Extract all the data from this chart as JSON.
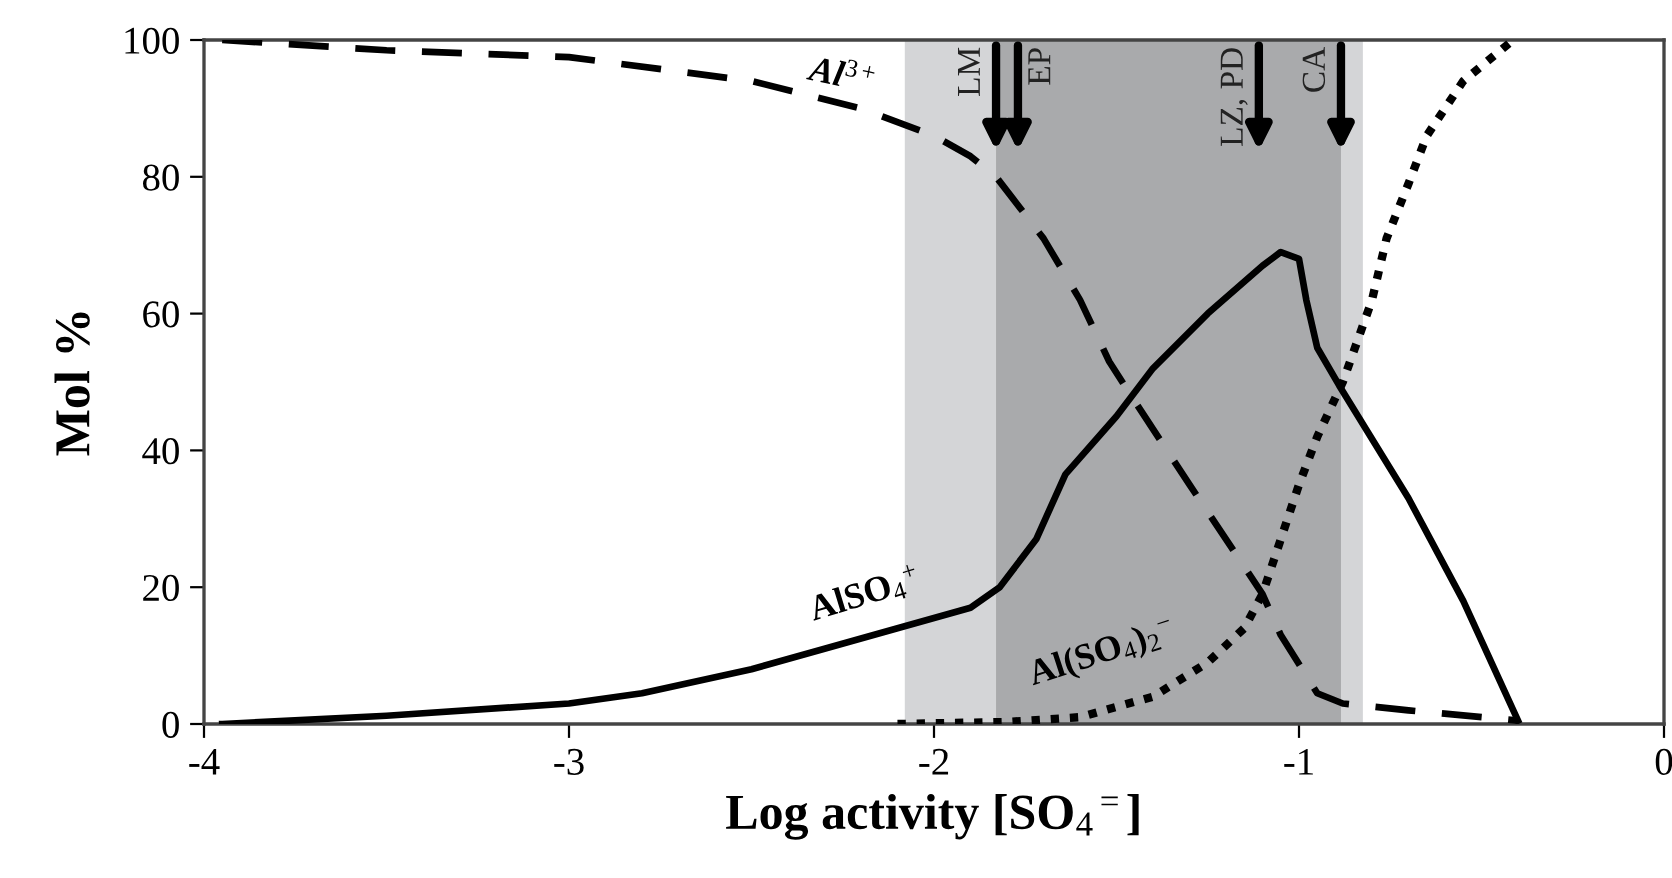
{
  "chart_data": {
    "type": "line",
    "xlabel": "Log activity [SO$_{4}$$^{=}$]",
    "ylabel": "Mol %",
    "xlim": [
      -4,
      0
    ],
    "xticks": [
      -4,
      -3,
      -2,
      -1,
      0
    ],
    "ylim": [
      0,
      100
    ],
    "yticks": [
      0,
      20,
      40,
      60,
      80,
      100
    ],
    "grid": false,
    "legend": false,
    "bands": [
      {
        "axis": "x",
        "from": -2.08,
        "to": -0.825,
        "color": "#d4d5d7"
      },
      {
        "axis": "x",
        "from": -1.83,
        "to": -0.885,
        "color": "#a9aaac"
      }
    ],
    "annotations": [
      {
        "text": "LM",
        "x": -1.83,
        "y": 100
      },
      {
        "text": "EP",
        "x": -1.77,
        "y": 100
      },
      {
        "text": "LZ, PD",
        "x": -1.11,
        "y": 100
      },
      {
        "text": "CA",
        "x": -0.885,
        "y": 100
      }
    ],
    "series": [
      {
        "name": "Al$^{3+}$",
        "color": "#000000",
        "line_style": "dashed",
        "x": [
          -3.95,
          -3.5,
          -3.0,
          -2.5,
          -2.2,
          -2.0,
          -1.9,
          -1.83,
          -1.7,
          -1.6,
          -1.52,
          -1.46,
          -1.3,
          -1.15,
          -1.1,
          -1.05,
          -0.95,
          -0.88,
          -0.7,
          -0.4
        ],
        "values": [
          100,
          98.5,
          97.5,
          94,
          90,
          86,
          83,
          80,
          71,
          62,
          53,
          48,
          35,
          23,
          19,
          13,
          4.5,
          3,
          2,
          0.5
        ]
      },
      {
        "name": "AlSO$_{4}$$^{+}$",
        "color": "#000000",
        "line_style": "solid",
        "x": [
          -3.95,
          -3.5,
          -3.0,
          -2.8,
          -2.5,
          -2.3,
          -2.1,
          -1.9,
          -1.82,
          -1.72,
          -1.64,
          -1.5,
          -1.4,
          -1.25,
          -1.1,
          -1.05,
          -1.0,
          -0.98,
          -0.95,
          -0.89,
          -0.7,
          -0.55,
          -0.4
        ],
        "values": [
          0,
          1.2,
          3,
          4.5,
          8,
          11,
          14,
          17,
          20,
          27,
          36.5,
          45,
          52,
          60,
          67,
          69,
          68,
          62,
          55,
          49.5,
          33,
          18,
          0.5
        ]
      },
      {
        "name": "Al(SO$_{4}$)$_{2}$$^{−}$",
        "color": "#000000",
        "line_style": "dotted",
        "x": [
          -2.1,
          -1.8,
          -1.6,
          -1.4,
          -1.25,
          -1.15,
          -1.1,
          -1.05,
          -1.0,
          -0.95,
          -0.88,
          -0.8,
          -0.76,
          -0.7,
          -0.65,
          -0.55,
          -0.42
        ],
        "values": [
          0,
          0.3,
          1,
          4,
          9,
          14,
          19,
          27,
          35,
          42,
          50,
          62,
          71,
          79,
          86,
          94,
          99.7
        ]
      }
    ]
  }
}
